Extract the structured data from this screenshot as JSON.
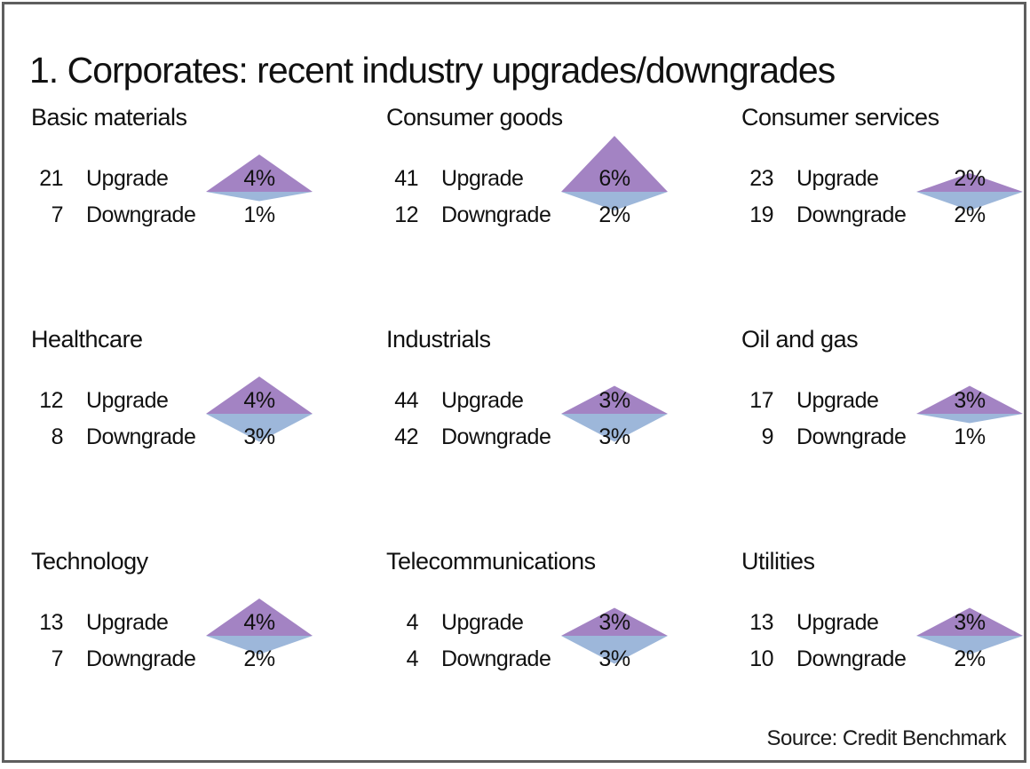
{
  "title": "1. Corporates: recent industry upgrades/downgrades",
  "source": "Source: Credit Benchmark",
  "colors": {
    "upgrade_triangle": "#a383c3",
    "downgrade_triangle": "#9db7da",
    "frame_border": "#5e5e5e",
    "text": "#111111"
  },
  "chart_data": {
    "type": "pictogram",
    "description": "3x3 grid of paired triangle glyphs; upward purple triangle height = upgrade percent, downward blue triangle height = downgrade percent",
    "title": "1. Corporates: recent industry upgrades/downgrades",
    "legend_position": "none",
    "panels": [
      {
        "name": "Basic materials",
        "upgrade": {
          "count": "21",
          "label": "Upgrade",
          "pct": "4%",
          "pct_value": 4
        },
        "downgrade": {
          "count": "7",
          "label": "Downgrade",
          "pct": "1%",
          "pct_value": 1
        }
      },
      {
        "name": "Consumer goods",
        "upgrade": {
          "count": "41",
          "label": "Upgrade",
          "pct": "6%",
          "pct_value": 6
        },
        "downgrade": {
          "count": "12",
          "label": "Downgrade",
          "pct": "2%",
          "pct_value": 2
        }
      },
      {
        "name": "Consumer services",
        "upgrade": {
          "count": "23",
          "label": "Upgrade",
          "pct": "2%",
          "pct_value": 2
        },
        "downgrade": {
          "count": "19",
          "label": "Downgrade",
          "pct": "2%",
          "pct_value": 2
        }
      },
      {
        "name": "Healthcare",
        "upgrade": {
          "count": "12",
          "label": "Upgrade",
          "pct": "4%",
          "pct_value": 4
        },
        "downgrade": {
          "count": "8",
          "label": "Downgrade",
          "pct": "3%",
          "pct_value": 3
        }
      },
      {
        "name": "Industrials",
        "upgrade": {
          "count": "44",
          "label": "Upgrade",
          "pct": "3%",
          "pct_value": 3
        },
        "downgrade": {
          "count": "42",
          "label": "Downgrade",
          "pct": "3%",
          "pct_value": 3
        }
      },
      {
        "name": "Oil and gas",
        "upgrade": {
          "count": "17",
          "label": "Upgrade",
          "pct": "3%",
          "pct_value": 3
        },
        "downgrade": {
          "count": "9",
          "label": "Downgrade",
          "pct": "1%",
          "pct_value": 1
        }
      },
      {
        "name": "Technology",
        "upgrade": {
          "count": "13",
          "label": "Upgrade",
          "pct": "4%",
          "pct_value": 4
        },
        "downgrade": {
          "count": "7",
          "label": "Downgrade",
          "pct": "2%",
          "pct_value": 2
        }
      },
      {
        "name": "Telecommunications",
        "upgrade": {
          "count": "4",
          "label": "Upgrade",
          "pct": "3%",
          "pct_value": 3
        },
        "downgrade": {
          "count": "4",
          "label": "Downgrade",
          "pct": "3%",
          "pct_value": 3
        }
      },
      {
        "name": "Utilities",
        "upgrade": {
          "count": "13",
          "label": "Upgrade",
          "pct": "3%",
          "pct_value": 3
        },
        "downgrade": {
          "count": "10",
          "label": "Downgrade",
          "pct": "2%",
          "pct_value": 2
        }
      }
    ]
  }
}
